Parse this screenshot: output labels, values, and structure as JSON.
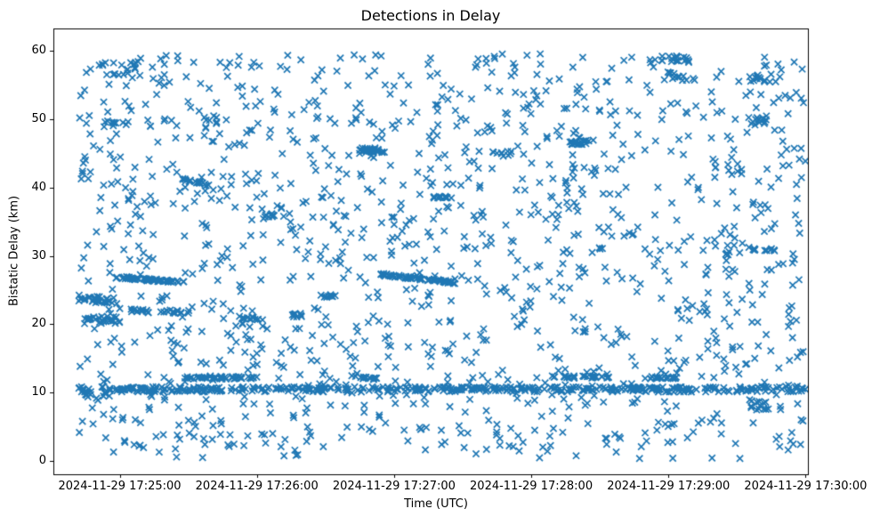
{
  "chart_data": {
    "type": "scatter",
    "title": "Detections in Delay",
    "xlabel": "Time (UTC)",
    "ylabel": "Bistatic Delay (km)",
    "marker": "x",
    "marker_color": "#1f77b4",
    "background_color": "#ffffff",
    "axis_color": "#000000",
    "grid": false,
    "legend": null,
    "n_points_approx": 2300,
    "ylim": [
      -1.9,
      63.2
    ],
    "y_ticks": [
      {
        "v": 0,
        "label": "0"
      },
      {
        "v": 10,
        "label": "10"
      },
      {
        "v": 20,
        "label": "20"
      },
      {
        "v": 30,
        "label": "30"
      },
      {
        "v": 40,
        "label": "40"
      },
      {
        "v": 50,
        "label": "50"
      },
      {
        "v": 60,
        "label": "60"
      }
    ],
    "x_axis": {
      "window": [
        "2024-11-29 17:24:31",
        "2024-11-29 17:30:01"
      ],
      "xlim_seconds": [
        0,
        330
      ],
      "ticks": [
        {
          "t": 29,
          "label": "2024-11-29 17:25:00"
        },
        {
          "t": 89,
          "label": "2024-11-29 17:26:00"
        },
        {
          "t": 149,
          "label": "2024-11-29 17:27:00"
        },
        {
          "t": 209,
          "label": "2024-11-29 17:28:00"
        },
        {
          "t": 269,
          "label": "2024-11-29 17:29:00"
        },
        {
          "t": 329,
          "label": "2024-11-29 17:30:00"
        }
      ]
    },
    "points": {
      "random": {
        "seed": 42,
        "n": 1350,
        "t_range_s": [
          11,
          329
        ],
        "y_range": [
          0.4,
          59.5
        ]
      },
      "features": [
        {
          "name": "band-10.5-full-width",
          "t": [
            11,
            329
          ],
          "y": [
            10.5,
            10.5
          ],
          "n": 430,
          "jitter": 0.38
        },
        {
          "name": "band-12.2-a",
          "t": [
            54,
            89
          ],
          "y": [
            12.2,
            12.2
          ],
          "n": 45,
          "jitter": 0.2
        },
        {
          "name": "band-12.2-b",
          "t": [
            134,
            142
          ],
          "y": [
            12.2,
            12.2
          ],
          "n": 12,
          "jitter": 0.18
        },
        {
          "name": "band-12.3-c",
          "t": [
            218,
            228
          ],
          "y": [
            12.3,
            12.3
          ],
          "n": 14,
          "jitter": 0.18
        },
        {
          "name": "band-12.3-d",
          "t": [
            231,
            243
          ],
          "y": [
            12.3,
            12.3
          ],
          "n": 16,
          "jitter": 0.18
        },
        {
          "name": "band-12.2-e",
          "t": [
            261,
            274
          ],
          "y": [
            12.2,
            12.2
          ],
          "n": 18,
          "jitter": 0.18
        },
        {
          "name": "track-26.5-early",
          "t": [
            27,
            58
          ],
          "y": [
            26.9,
            26.1
          ],
          "n": 55,
          "jitter": 0.18
        },
        {
          "name": "blob-23.6",
          "t": [
            11,
            28
          ],
          "y": [
            23.8,
            23.4
          ],
          "n": 35,
          "jitter": 0.5
        },
        {
          "name": "blob-20.6",
          "t": [
            13,
            29
          ],
          "y": [
            20.6,
            20.6
          ],
          "n": 25,
          "jitter": 0.55
        },
        {
          "name": "dash-22.0-a",
          "t": [
            34,
            43
          ],
          "y": [
            22.0,
            21.9
          ],
          "n": 14,
          "jitter": 0.25
        },
        {
          "name": "dash-21.9-b",
          "t": [
            47,
            57
          ],
          "y": [
            21.9,
            21.8
          ],
          "n": 14,
          "jitter": 0.25
        },
        {
          "name": "dash-20.9",
          "t": [
            81,
            92
          ],
          "y": [
            21.0,
            20.8
          ],
          "n": 14,
          "jitter": 0.18
        },
        {
          "name": "track-41-descending",
          "t": [
            56,
            69
          ],
          "y": [
            41.3,
            40.2
          ],
          "n": 16,
          "jitter": 0.15
        },
        {
          "name": "cluster-45.4",
          "t": [
            134,
            145
          ],
          "y": [
            45.4,
            45.4
          ],
          "n": 28,
          "jitter": 0.4
        },
        {
          "name": "track-27-descending",
          "t": [
            142,
            176
          ],
          "y": [
            27.3,
            26.1
          ],
          "n": 65,
          "jitter": 0.18
        },
        {
          "name": "dash-38.6",
          "t": [
            166,
            175
          ],
          "y": [
            38.6,
            38.6
          ],
          "n": 12,
          "jitter": 0.2
        },
        {
          "name": "dash-46.6",
          "t": [
            225,
            238
          ],
          "y": [
            46.6,
            46.6
          ],
          "n": 18,
          "jitter": 0.35
        },
        {
          "name": "cluster-57.3",
          "t": [
            20,
            36
          ],
          "y": [
            57.3,
            57.3
          ],
          "n": 18,
          "jitter": 0.9
        },
        {
          "name": "cluster-49.3",
          "t": [
            22,
            32
          ],
          "y": [
            49.3,
            49.3
          ],
          "n": 10,
          "jitter": 0.5
        },
        {
          "name": "cluster-58.8",
          "t": [
            263,
            279
          ],
          "y": [
            58.8,
            58.8
          ],
          "n": 16,
          "jitter": 0.45
        },
        {
          "name": "cluster-56.2",
          "t": [
            267,
            281
          ],
          "y": [
            56.2,
            56.2
          ],
          "n": 12,
          "jitter": 0.6
        },
        {
          "name": "cluster-55.9",
          "t": [
            304,
            318
          ],
          "y": [
            55.9,
            55.9
          ],
          "n": 12,
          "jitter": 0.5
        },
        {
          "name": "blob-8.2",
          "t": [
            304,
            313
          ],
          "y": [
            8.2,
            8.2
          ],
          "n": 14,
          "jitter": 0.8
        },
        {
          "name": "blob-49.7",
          "t": [
            304,
            315
          ],
          "y": [
            49.7,
            49.7
          ],
          "n": 12,
          "jitter": 0.5
        },
        {
          "name": "dash-31.0",
          "t": [
            306,
            317
          ],
          "y": [
            31.0,
            31.0
          ],
          "n": 10,
          "jitter": 0.3
        },
        {
          "name": "dash-35.9",
          "t": [
            92,
            102
          ],
          "y": [
            35.9,
            35.9
          ],
          "n": 10,
          "jitter": 0.3
        },
        {
          "name": "dash-44.9",
          "t": [
            191,
            201
          ],
          "y": [
            44.9,
            44.9
          ],
          "n": 10,
          "jitter": 0.4
        },
        {
          "name": "dash-21.3",
          "t": [
            104,
            112
          ],
          "y": [
            21.3,
            21.3
          ],
          "n": 8,
          "jitter": 0.3
        },
        {
          "name": "dash-24.1",
          "t": [
            116,
            125
          ],
          "y": [
            24.1,
            24.1
          ],
          "n": 9,
          "jitter": 0.22
        },
        {
          "name": "blob-9.7-start",
          "t": [
            11,
            24
          ],
          "y": [
            9.7,
            9.7
          ],
          "n": 12,
          "jitter": 0.5
        }
      ]
    }
  }
}
